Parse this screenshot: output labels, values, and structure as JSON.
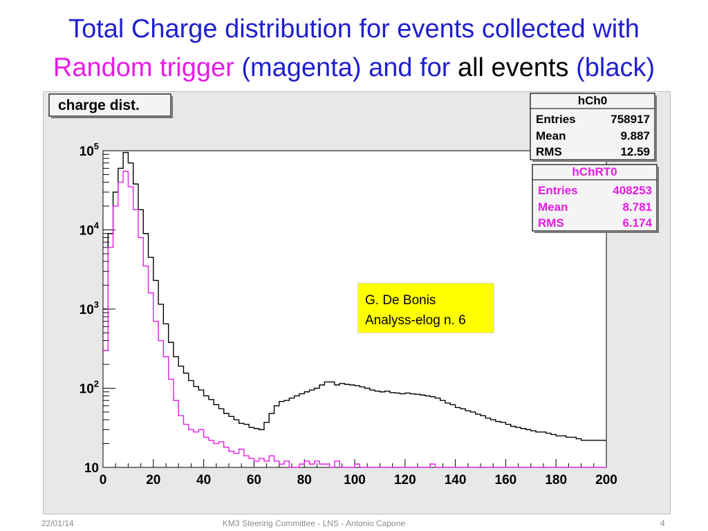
{
  "title": {
    "line1": "Total Charge distribution for events collected with",
    "line2_magenta": "Random trigger",
    "line2_paren_magenta": "(magenta)",
    "line2_andfor": "and for",
    "line2_all_events": "all events",
    "line2_paren_black": "(black)"
  },
  "plot_label": "charge dist.",
  "stats_all": {
    "name": "hCh0",
    "rows": [
      {
        "key": "Entries",
        "val": "758917"
      },
      {
        "key": "Mean",
        "val": "9.887"
      },
      {
        "key": "RMS",
        "val": "12.59"
      }
    ]
  },
  "stats_random": {
    "name": "hChRT0",
    "rows": [
      {
        "key": "Entries",
        "val": "408253"
      },
      {
        "key": "Mean",
        "val": "8.781"
      },
      {
        "key": "RMS",
        "val": "6.174"
      }
    ]
  },
  "note": {
    "line1": "G. De Bonis",
    "line2": "Analyss-elog n. 6"
  },
  "footer": {
    "date": "22/01/14",
    "center": "KM3 Steering Committee - LNS - Antonio Capone",
    "page": "4"
  },
  "colors": {
    "title": "#1f1fcf",
    "magenta": "#e61be6",
    "black": "#000000",
    "note_bg": "#ffff00"
  },
  "chart_data": {
    "type": "line",
    "style": "step histogram",
    "y_scale": "log",
    "xlim": [
      0,
      200
    ],
    "ylim": [
      10,
      100000
    ],
    "x_ticks": [
      "0",
      "20",
      "40",
      "60",
      "80",
      "100",
      "120",
      "140",
      "160",
      "180",
      "200"
    ],
    "y_tick_labels": [
      {
        "value": 10,
        "label": "10"
      },
      {
        "value": 100,
        "label": "10^2"
      },
      {
        "value": 1000,
        "label": "10^3"
      },
      {
        "value": 10000,
        "label": "10^4"
      },
      {
        "value": 100000,
        "label": "10^5"
      }
    ],
    "x": [
      1,
      3,
      5,
      7,
      9,
      11,
      13,
      15,
      17,
      19,
      21,
      23,
      25,
      27,
      29,
      31,
      33,
      35,
      37,
      39,
      41,
      43,
      45,
      47,
      49,
      51,
      53,
      55,
      57,
      59,
      61,
      63,
      65,
      67,
      69,
      71,
      73,
      75,
      77,
      79,
      81,
      83,
      85,
      87,
      89,
      91,
      93,
      95,
      97,
      99,
      101,
      103,
      105,
      107,
      109,
      111,
      113,
      115,
      117,
      119,
      121,
      123,
      125,
      127,
      129,
      131,
      133,
      135,
      137,
      139,
      141,
      143,
      145,
      147,
      149,
      151,
      153,
      155,
      157,
      159,
      161,
      163,
      165,
      167,
      169,
      171,
      173,
      175,
      177,
      179,
      181,
      183,
      185,
      187,
      189,
      191,
      193,
      195,
      197,
      199
    ],
    "series": [
      {
        "name": "hCh0",
        "color": "#000000",
        "values": [
          1000,
          9000,
          30000,
          60000,
          95000,
          70000,
          38000,
          18000,
          9000,
          4500,
          2300,
          1150,
          650,
          380,
          250,
          190,
          155,
          125,
          105,
          95,
          80,
          72,
          62,
          55,
          48,
          44,
          40,
          36,
          35,
          32,
          31,
          30,
          37,
          48,
          60,
          68,
          70,
          75,
          80,
          85,
          90,
          95,
          100,
          110,
          120,
          120,
          110,
          115,
          112,
          110,
          108,
          104,
          100,
          95,
          92,
          90,
          92,
          88,
          87,
          85,
          87,
          85,
          84,
          82,
          80,
          78,
          75,
          70,
          65,
          62,
          57,
          55,
          52,
          50,
          47,
          45,
          42,
          40,
          38,
          37,
          35,
          33,
          32,
          31,
          30,
          29,
          28,
          28,
          27,
          26,
          25,
          25,
          24,
          24,
          23,
          22,
          22,
          22,
          22,
          22
        ]
      },
      {
        "name": "hChRT0",
        "color": "#e61be6",
        "values": [
          300,
          6000,
          20000,
          40000,
          55000,
          35000,
          18000,
          8000,
          3500,
          1600,
          700,
          400,
          250,
          130,
          70,
          45,
          35,
          30,
          28,
          30,
          24,
          22,
          20,
          21,
          18,
          16,
          15,
          17,
          14,
          13,
          12,
          13,
          12,
          14,
          12,
          11,
          12,
          10,
          10,
          11,
          12,
          11,
          12,
          11,
          11,
          10,
          12,
          10,
          10,
          10,
          11,
          10,
          10,
          10,
          10,
          10,
          10,
          10,
          10,
          10,
          10,
          10,
          10,
          10,
          10,
          11,
          10,
          10,
          10,
          10,
          10,
          10,
          10,
          10,
          10,
          10,
          10,
          10,
          10,
          10,
          10,
          10,
          10,
          10,
          10,
          10,
          10,
          10,
          10,
          10,
          10,
          10,
          10,
          10,
          10,
          10,
          10,
          10,
          10,
          10
        ]
      }
    ]
  }
}
